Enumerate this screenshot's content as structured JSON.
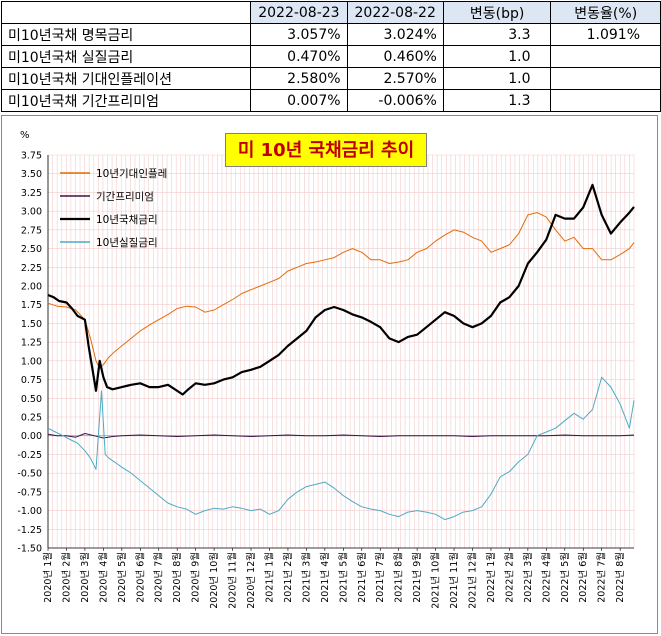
{
  "table": {
    "headers": [
      "",
      "2022-08-23",
      "2022-08-22",
      "변동(bp)",
      "변동율(%)"
    ],
    "rows": [
      [
        "미10년국채 명목금리",
        "3.057%",
        "3.024%",
        "3.3",
        "1.091%"
      ],
      [
        "미10년국채 실질금리",
        "0.470%",
        "0.460%",
        "1.0",
        ""
      ],
      [
        "미10년국채 기대인플레이션",
        "2.580%",
        "2.570%",
        "1.0",
        ""
      ],
      [
        "미10년국채 기간프리미엄",
        "0.007%",
        "-0.006%",
        "1.3",
        ""
      ]
    ]
  },
  "chart_data": {
    "type": "line",
    "title": "미 10년 국채금리 추이",
    "ylabel": "%",
    "ylim": [
      -1.5,
      3.75
    ],
    "yticks": [
      "3.75",
      "3.50",
      "3.25",
      "3.00",
      "2.75",
      "2.50",
      "2.25",
      "2.00",
      "1.75",
      "1.50",
      "1.25",
      "1.00",
      "0.75",
      "0.50",
      "0.25",
      "0.00",
      "-0.25",
      "-0.50",
      "-0.75",
      "-1.00",
      "-1.25",
      "-1.50"
    ],
    "x_month_labels": [
      "2020년 1월",
      "2020년 2월",
      "2020년 3월",
      "2020년 4월",
      "2020년 5월",
      "2020년 6월",
      "2020년 7월",
      "2020년 8월",
      "2020년 9월",
      "2020년 10월",
      "2020년 11월",
      "2020년 12월",
      "2021년 1월",
      "2021년 2월",
      "2021년 3월",
      "2021년 4월",
      "2021년 5월",
      "2021년 6월",
      "2021년 7월",
      "2021년 8월",
      "2021년 9월",
      "2021년 10월",
      "2021년 11월",
      "2021년 12월",
      "2022년 1월",
      "2022년 2월",
      "2022년 3월",
      "2022년 4월",
      "2022년 5월",
      "2022년 6월",
      "2022년 7월",
      "2022년 8월"
    ],
    "x_month_index": [
      0,
      1,
      2,
      3,
      4,
      5,
      6,
      7,
      8,
      9,
      10,
      11,
      12,
      13,
      14,
      15,
      16,
      17,
      18,
      19,
      20,
      21,
      22,
      23,
      24,
      25,
      26,
      27,
      28,
      29,
      30,
      31
    ],
    "grid": true,
    "legend_position": "top-left",
    "series": [
      {
        "name": "10년기대인플레",
        "color": "#e36c09",
        "width": 1,
        "x": [
          0,
          0.5,
          1,
          1.5,
          2,
          2.3,
          2.6,
          2.8,
          3.0,
          3.3,
          3.6,
          4,
          4.5,
          5,
          5.5,
          6,
          6.5,
          7,
          7.5,
          8,
          8.5,
          9,
          9.5,
          10,
          10.5,
          11,
          11.5,
          12,
          12.5,
          13,
          13.5,
          14,
          14.5,
          15,
          15.5,
          16,
          16.5,
          17,
          17.5,
          18,
          18.5,
          19,
          19.5,
          20,
          20.5,
          21,
          21.5,
          22,
          22.5,
          23,
          23.5,
          24,
          24.5,
          25,
          25.5,
          26,
          26.5,
          27,
          27.5,
          28,
          28.5,
          29,
          29.5,
          30,
          30.5,
          31,
          31.5,
          31.75
        ],
        "y": [
          1.77,
          1.73,
          1.72,
          1.68,
          1.55,
          1.3,
          1.0,
          0.9,
          0.95,
          1.05,
          1.12,
          1.2,
          1.3,
          1.4,
          1.48,
          1.55,
          1.62,
          1.7,
          1.73,
          1.72,
          1.65,
          1.68,
          1.75,
          1.82,
          1.9,
          1.95,
          2.0,
          2.05,
          2.1,
          2.2,
          2.25,
          2.3,
          2.32,
          2.35,
          2.38,
          2.45,
          2.5,
          2.45,
          2.35,
          2.35,
          2.3,
          2.32,
          2.35,
          2.45,
          2.5,
          2.6,
          2.68,
          2.75,
          2.72,
          2.65,
          2.6,
          2.45,
          2.5,
          2.55,
          2.7,
          2.95,
          2.98,
          2.92,
          2.75,
          2.6,
          2.65,
          2.5,
          2.5,
          2.35,
          2.35,
          2.42,
          2.5,
          2.58
        ]
      },
      {
        "name": "기간프리미엄",
        "color": "#3d1245",
        "width": 1,
        "x": [
          0,
          0.5,
          1,
          1.5,
          2,
          2.5,
          3,
          3.5,
          4,
          5,
          6,
          7,
          8,
          9,
          10,
          11,
          12,
          13,
          14,
          15,
          16,
          17,
          18,
          19,
          20,
          21,
          22,
          23,
          24,
          25,
          26,
          27,
          28,
          29,
          30,
          31,
          31.75
        ],
        "y": [
          0.02,
          0.0,
          0.0,
          -0.02,
          0.03,
          0.0,
          -0.03,
          -0.01,
          0.0,
          0.01,
          0.0,
          -0.01,
          0.0,
          0.01,
          0.0,
          -0.01,
          0.0,
          0.01,
          0.0,
          0.0,
          0.01,
          0.0,
          -0.01,
          0.0,
          0.0,
          0.0,
          0.0,
          -0.01,
          0.0,
          0.0,
          0.0,
          0.0,
          0.01,
          0.0,
          0.0,
          0.0,
          0.01
        ]
      },
      {
        "name": "10년국채금리",
        "color": "#000000",
        "width": 2.2,
        "x": [
          0,
          0.3,
          0.6,
          1,
          1.3,
          1.6,
          2.0,
          2.2,
          2.4,
          2.6,
          2.8,
          3.0,
          3.2,
          3.5,
          4,
          4.5,
          5,
          5.5,
          6,
          6.5,
          7,
          7.3,
          7.6,
          8,
          8.5,
          9,
          9.5,
          10,
          10.5,
          11,
          11.5,
          12,
          12.5,
          13,
          13.5,
          14,
          14.5,
          15,
          15.5,
          16,
          16.5,
          17,
          17.5,
          18,
          18.5,
          19,
          19.5,
          20,
          20.5,
          21,
          21.5,
          22,
          22.5,
          23,
          23.5,
          24,
          24.5,
          25,
          25.5,
          26,
          26.5,
          27,
          27.5,
          28,
          28.5,
          29,
          29.5,
          30,
          30.5,
          31,
          31.5,
          31.75
        ],
        "y": [
          1.88,
          1.85,
          1.8,
          1.78,
          1.7,
          1.6,
          1.55,
          1.2,
          0.9,
          0.6,
          1.0,
          0.78,
          0.65,
          0.62,
          0.65,
          0.68,
          0.7,
          0.65,
          0.65,
          0.68,
          0.6,
          0.55,
          0.62,
          0.7,
          0.68,
          0.7,
          0.75,
          0.78,
          0.85,
          0.88,
          0.92,
          1.0,
          1.08,
          1.2,
          1.3,
          1.4,
          1.58,
          1.68,
          1.72,
          1.68,
          1.62,
          1.58,
          1.52,
          1.45,
          1.3,
          1.25,
          1.32,
          1.35,
          1.45,
          1.55,
          1.65,
          1.6,
          1.5,
          1.45,
          1.5,
          1.6,
          1.78,
          1.85,
          2.0,
          2.3,
          2.45,
          2.62,
          2.95,
          2.9,
          2.9,
          3.05,
          3.35,
          2.95,
          2.7,
          2.85,
          2.98,
          3.057
        ]
      },
      {
        "name": "10년실질금리",
        "color": "#4bacc6",
        "width": 1,
        "x": [
          0,
          0.4,
          0.8,
          1.2,
          1.6,
          2.0,
          2.3,
          2.6,
          2.9,
          3.1,
          3.3,
          3.6,
          4,
          4.5,
          5,
          5.5,
          6,
          6.5,
          7,
          7.5,
          8,
          8.5,
          9,
          9.5,
          10,
          10.5,
          11,
          11.5,
          12,
          12.5,
          13,
          13.5,
          14,
          14.5,
          15,
          15.5,
          16,
          16.5,
          17,
          17.5,
          18,
          18.5,
          19,
          19.5,
          20,
          20.5,
          21,
          21.5,
          22,
          22.5,
          23,
          23.5,
          24,
          24.5,
          25,
          25.5,
          26,
          26.5,
          27,
          27.5,
          28,
          28.5,
          29,
          29.5,
          30,
          30.5,
          31,
          31.5,
          31.75
        ],
        "y": [
          0.1,
          0.05,
          0.0,
          -0.05,
          -0.1,
          -0.2,
          -0.3,
          -0.45,
          0.6,
          -0.25,
          -0.3,
          -0.35,
          -0.42,
          -0.5,
          -0.6,
          -0.7,
          -0.8,
          -0.9,
          -0.95,
          -0.98,
          -1.05,
          -1.0,
          -0.97,
          -0.98,
          -0.95,
          -0.97,
          -1.0,
          -0.98,
          -1.05,
          -1.0,
          -0.85,
          -0.75,
          -0.68,
          -0.65,
          -0.62,
          -0.7,
          -0.8,
          -0.88,
          -0.95,
          -0.98,
          -1.0,
          -1.05,
          -1.08,
          -1.02,
          -1.0,
          -1.02,
          -1.05,
          -1.12,
          -1.08,
          -1.02,
          -1.0,
          -0.95,
          -0.78,
          -0.55,
          -0.48,
          -0.35,
          -0.25,
          0.0,
          0.05,
          0.1,
          0.2,
          0.3,
          0.22,
          0.35,
          0.78,
          0.65,
          0.42,
          0.1,
          0.47
        ]
      }
    ]
  }
}
